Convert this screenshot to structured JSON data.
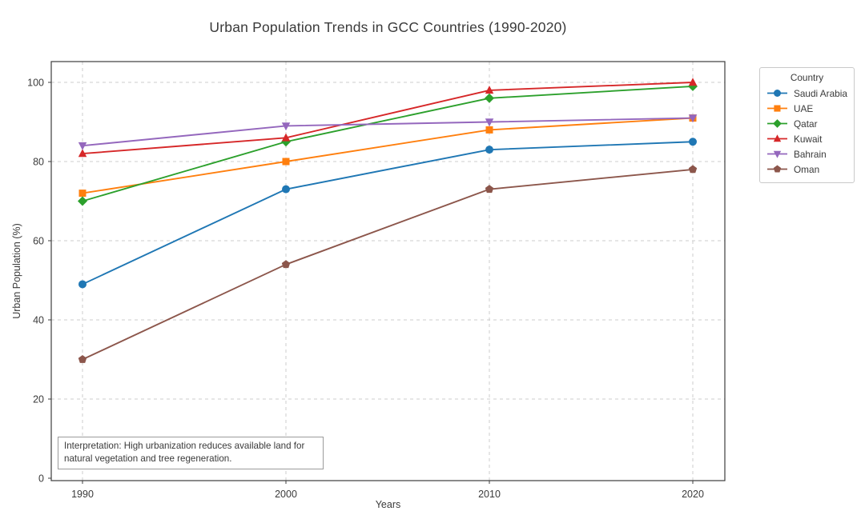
{
  "chart_data": {
    "type": "line",
    "title": "Urban Population Trends in GCC Countries (1990-2020)",
    "xlabel": "Years",
    "ylabel": "Urban Population (%)",
    "legend_title": "Country",
    "legend_position": "outside right top",
    "grid": "dashed, both axes",
    "x": [
      1990,
      2000,
      2010,
      2020
    ],
    "yticks": [
      0,
      20,
      40,
      60,
      80,
      100
    ],
    "ylim": [
      0,
      105
    ],
    "series": [
      {
        "name": "Saudi Arabia",
        "color": "#1f77b4",
        "marker": "circle",
        "values": [
          49,
          73,
          83,
          85
        ]
      },
      {
        "name": "UAE",
        "color": "#ff7f0e",
        "marker": "square",
        "values": [
          72,
          80,
          88,
          91
        ]
      },
      {
        "name": "Qatar",
        "color": "#2ca02c",
        "marker": "diamond",
        "values": [
          70,
          85,
          96,
          99
        ]
      },
      {
        "name": "Kuwait",
        "color": "#d62728",
        "marker": "triangle-up",
        "values": [
          82,
          86,
          98,
          100
        ]
      },
      {
        "name": "Bahrain",
        "color": "#9467bd",
        "marker": "triangle-down",
        "values": [
          84,
          89,
          90,
          91
        ]
      },
      {
        "name": "Oman",
        "color": "#8c564b",
        "marker": "pentagon",
        "values": [
          30,
          54,
          73,
          78
        ]
      }
    ],
    "annotation": "Interpretation: High urbanization reduces available land for natural vegetation and tree regeneration."
  },
  "style": {
    "background": "#ffffff",
    "axis_color": "#3c3c3c",
    "grid_color": "#cccccc",
    "text_color": "#3a3a3a",
    "legend_border": "#c9c9c9",
    "annotation_border": "#9b9b9b"
  }
}
